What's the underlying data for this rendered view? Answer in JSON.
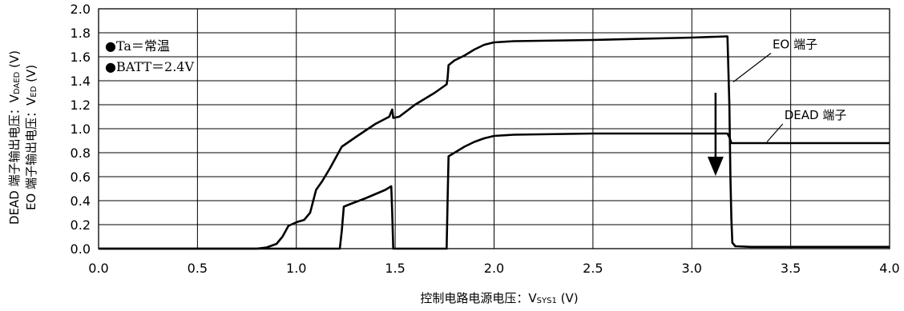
{
  "chart_data": {
    "type": "line",
    "xlabel_main": "控制电路电源电压：V",
    "xlabel_sub": "SYS1",
    "xlabel_unit": " (V)",
    "ylabel_line1_main": "DEAD 端子输出电压：V",
    "ylabel_line1_sub": "DAED",
    "ylabel_line1_unit": " (V)",
    "ylabel_line2_main": "EO 端子输出电压：V",
    "ylabel_line2_sub": "ED",
    "ylabel_line2_unit": " (V)",
    "xlim": [
      0.0,
      4.0
    ],
    "ylim": [
      0.0,
      2.0
    ],
    "x_ticks": [
      "0.0",
      "0.5",
      "1.0",
      "1.5",
      "2.0",
      "2.5",
      "3.0",
      "3.5",
      "4.0"
    ],
    "y_ticks": [
      "0.0",
      "0.2",
      "0.4",
      "0.6",
      "0.8",
      "1.0",
      "1.2",
      "1.4",
      "1.6",
      "1.8",
      "2.0"
    ],
    "grid": true,
    "conditions": [
      "●Ta＝常温",
      "●BATT＝2.4V"
    ],
    "series": [
      {
        "name": "EO 端子",
        "points": [
          [
            0.0,
            0.0
          ],
          [
            0.8,
            0.0
          ],
          [
            0.85,
            0.01
          ],
          [
            0.9,
            0.04
          ],
          [
            0.93,
            0.1
          ],
          [
            0.96,
            0.19
          ],
          [
            1.0,
            0.22
          ],
          [
            1.04,
            0.24
          ],
          [
            1.07,
            0.3
          ],
          [
            1.1,
            0.49
          ],
          [
            1.13,
            0.56
          ],
          [
            1.17,
            0.67
          ],
          [
            1.2,
            0.76
          ],
          [
            1.23,
            0.85
          ],
          [
            1.3,
            0.93
          ],
          [
            1.4,
            1.04
          ],
          [
            1.47,
            1.1
          ],
          [
            1.485,
            1.16
          ],
          [
            1.49,
            1.09
          ],
          [
            1.52,
            1.1
          ],
          [
            1.6,
            1.2
          ],
          [
            1.7,
            1.3
          ],
          [
            1.76,
            1.37
          ],
          [
            1.765,
            1.42
          ],
          [
            1.77,
            1.53
          ],
          [
            1.8,
            1.57
          ],
          [
            1.85,
            1.61
          ],
          [
            1.9,
            1.66
          ],
          [
            1.95,
            1.7
          ],
          [
            2.0,
            1.72
          ],
          [
            2.1,
            1.73
          ],
          [
            2.5,
            1.74
          ],
          [
            3.0,
            1.76
          ],
          [
            3.18,
            1.77
          ],
          [
            3.19,
            1.2
          ],
          [
            3.195,
            0.6
          ],
          [
            3.2,
            0.25
          ],
          [
            3.205,
            0.05
          ],
          [
            3.22,
            0.02
          ],
          [
            3.3,
            0.015
          ],
          [
            4.0,
            0.015
          ]
        ]
      },
      {
        "name": "DEAD 端子",
        "points": [
          [
            0.0,
            0.0
          ],
          [
            1.22,
            0.0
          ],
          [
            1.23,
            0.15
          ],
          [
            1.24,
            0.35
          ],
          [
            1.27,
            0.37
          ],
          [
            1.35,
            0.42
          ],
          [
            1.45,
            0.49
          ],
          [
            1.48,
            0.52
          ],
          [
            1.485,
            0.3
          ],
          [
            1.49,
            0.0
          ],
          [
            1.76,
            0.0
          ],
          [
            1.765,
            0.4
          ],
          [
            1.77,
            0.77
          ],
          [
            1.8,
            0.8
          ],
          [
            1.85,
            0.85
          ],
          [
            1.9,
            0.89
          ],
          [
            1.95,
            0.92
          ],
          [
            2.0,
            0.94
          ],
          [
            2.1,
            0.95
          ],
          [
            2.5,
            0.96
          ],
          [
            3.0,
            0.96
          ],
          [
            3.18,
            0.96
          ],
          [
            3.19,
            0.93
          ],
          [
            3.2,
            0.88
          ],
          [
            4.0,
            0.88
          ]
        ]
      }
    ],
    "annotations": [
      {
        "text": "EO 端子",
        "points_to": [
          3.21,
          1.39
        ],
        "label_at": [
          3.4,
          1.67
        ]
      },
      {
        "text": "DEAD 端子",
        "points_to": [
          3.38,
          0.89
        ],
        "label_at": [
          3.46,
          1.08
        ]
      }
    ],
    "arrow": {
      "from": [
        3.12,
        1.3
      ],
      "to": [
        3.12,
        0.62
      ],
      "direction": "down"
    }
  }
}
